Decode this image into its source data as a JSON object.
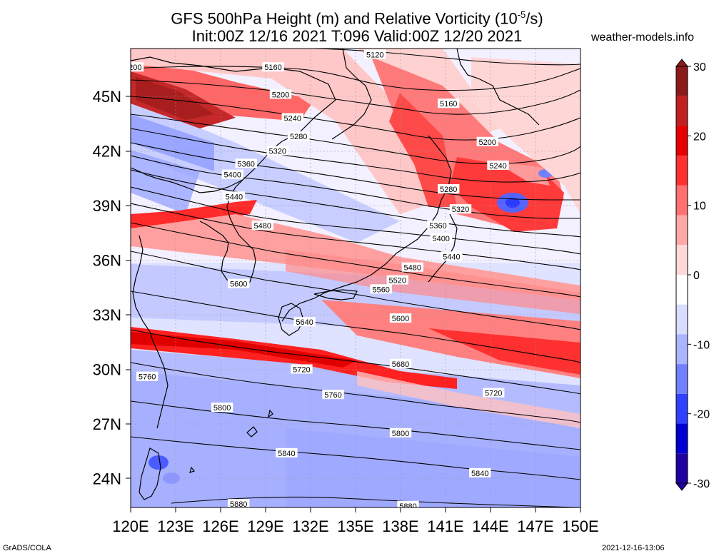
{
  "title_line1": "GFS 500hPa Height (m) and Relative Vorticity (10",
  "title_sup": "-5",
  "title_line1_end": "/s)",
  "title_line2": "Init:00Z 12/16 2021 T:096 Valid:00Z 12/20 2021",
  "source": "weather-models.info",
  "footer_left": "GrADS/COLA",
  "footer_right": "2021-12-16-13:06",
  "lon_ticks": [
    "120E",
    "123E",
    "126E",
    "129E",
    "132E",
    "135E",
    "138E",
    "141E",
    "144E",
    "147E",
    "150E"
  ],
  "lat_ticks": [
    "45N",
    "42N",
    "39N",
    "36N",
    "33N",
    "30N",
    "27N",
    "24N"
  ],
  "colorbar": {
    "labels": [
      "30",
      "20",
      "10",
      "0",
      "-10",
      "-20",
      "-30"
    ],
    "colors": [
      "#8b1a1a",
      "#c02020",
      "#e60000",
      "#ff3030",
      "#ff7070",
      "#ffa8a8",
      "#ffd8d8",
      "#ffffff",
      "#d8dcff",
      "#aab4ff",
      "#7080ff",
      "#3040ff",
      "#0000d0",
      "#2000a0"
    ]
  },
  "contour_labels": [
    "5120",
    "5160",
    "5200",
    "5240",
    "5280",
    "5320",
    "5360",
    "5400",
    "5440",
    "5480",
    "5520",
    "5560",
    "5600",
    "5640",
    "5680",
    "5720",
    "5760",
    "5800",
    "5840",
    "5880"
  ],
  "map_contour_labels": [
    {
      "t": "5120",
      "lon": 136.3,
      "lat": 47.3
    },
    {
      "t": "200",
      "lon": 120.3,
      "lat": 46.6
    },
    {
      "t": "5160",
      "lon": 129.5,
      "lat": 46.6
    },
    {
      "t": "5200",
      "lon": 130.0,
      "lat": 45.1
    },
    {
      "t": "5160",
      "lon": 141.2,
      "lat": 44.6
    },
    {
      "t": "5240",
      "lon": 130.8,
      "lat": 43.8
    },
    {
      "t": "5280",
      "lon": 131.2,
      "lat": 42.8
    },
    {
      "t": "5200",
      "lon": 143.8,
      "lat": 42.5
    },
    {
      "t": "5320",
      "lon": 129.8,
      "lat": 42.0
    },
    {
      "t": "5360",
      "lon": 127.7,
      "lat": 41.3
    },
    {
      "t": "5240",
      "lon": 144.5,
      "lat": 41.2
    },
    {
      "t": "5400",
      "lon": 126.8,
      "lat": 40.7
    },
    {
      "t": "5280",
      "lon": 141.2,
      "lat": 39.9
    },
    {
      "t": "5440",
      "lon": 126.9,
      "lat": 39.5
    },
    {
      "t": "5320",
      "lon": 142.0,
      "lat": 38.8
    },
    {
      "t": "5480",
      "lon": 128.8,
      "lat": 37.9
    },
    {
      "t": "5360",
      "lon": 140.5,
      "lat": 37.9
    },
    {
      "t": "5400",
      "lon": 140.7,
      "lat": 37.2
    },
    {
      "t": "5440",
      "lon": 141.4,
      "lat": 36.2
    },
    {
      "t": "5480",
      "lon": 138.8,
      "lat": 35.6
    },
    {
      "t": "5520",
      "lon": 137.8,
      "lat": 34.9
    },
    {
      "t": "5600",
      "lon": 127.2,
      "lat": 34.7
    },
    {
      "t": "5560",
      "lon": 136.7,
      "lat": 34.4
    },
    {
      "t": "5640",
      "lon": 131.6,
      "lat": 32.6
    },
    {
      "t": "5600",
      "lon": 138.0,
      "lat": 32.8
    },
    {
      "t": "5680",
      "lon": 138.0,
      "lat": 30.3
    },
    {
      "t": "5720",
      "lon": 131.4,
      "lat": 30.0
    },
    {
      "t": "5760",
      "lon": 121.1,
      "lat": 29.6
    },
    {
      "t": "5720",
      "lon": 144.2,
      "lat": 28.7
    },
    {
      "t": "5760",
      "lon": 133.5,
      "lat": 28.6
    },
    {
      "t": "5800",
      "lon": 126.1,
      "lat": 27.9
    },
    {
      "t": "5800",
      "lon": 138.0,
      "lat": 26.5
    },
    {
      "t": "5840",
      "lon": 130.4,
      "lat": 25.4
    },
    {
      "t": "5840",
      "lon": 143.3,
      "lat": 24.3
    },
    {
      "t": "5880",
      "lon": 127.2,
      "lat": 22.6
    },
    {
      "t": "5880",
      "lon": 138.5,
      "lat": 22.5
    }
  ]
}
